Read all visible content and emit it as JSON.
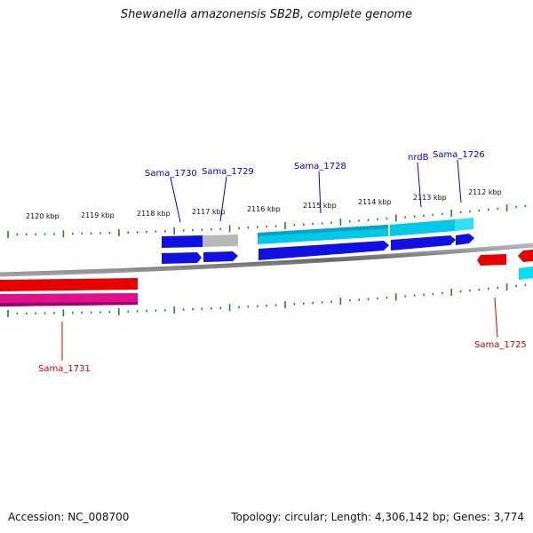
{
  "title": "Shewanella amazonensis SB2B, complete genome",
  "footer": {
    "accession": "Accession: NC_008700",
    "summary": "Topology: circular; Length: 4,306,142 bp; Genes: 3,774"
  },
  "scale_labels": [
    "2120 kbp",
    "2119 kbp",
    "2118 kbp",
    "2117 kbp",
    "2116 kbp",
    "2115 kbp",
    "2114 kbp",
    "2113 kbp",
    "2112 kbp"
  ],
  "genes_top": [
    {
      "label": "Sama_1730"
    },
    {
      "label": "Sama_1729"
    },
    {
      "label": "Sama_1728"
    },
    {
      "label": "nrdB"
    },
    {
      "label": "Sama_1726"
    }
  ],
  "genes_bottom": [
    {
      "label": "Sama_1731"
    },
    {
      "label": "Sama_1725"
    }
  ],
  "colors": {
    "forward_cds": "#1010e0",
    "forward_gene": "#00c8e6",
    "reverse_cds": "#e60000",
    "reverse_gene": "#e0108c",
    "tick": "#1e8c1e",
    "backbone": "#808080",
    "top_label": "#0000cc",
    "bottom_label": "#cc0000"
  }
}
